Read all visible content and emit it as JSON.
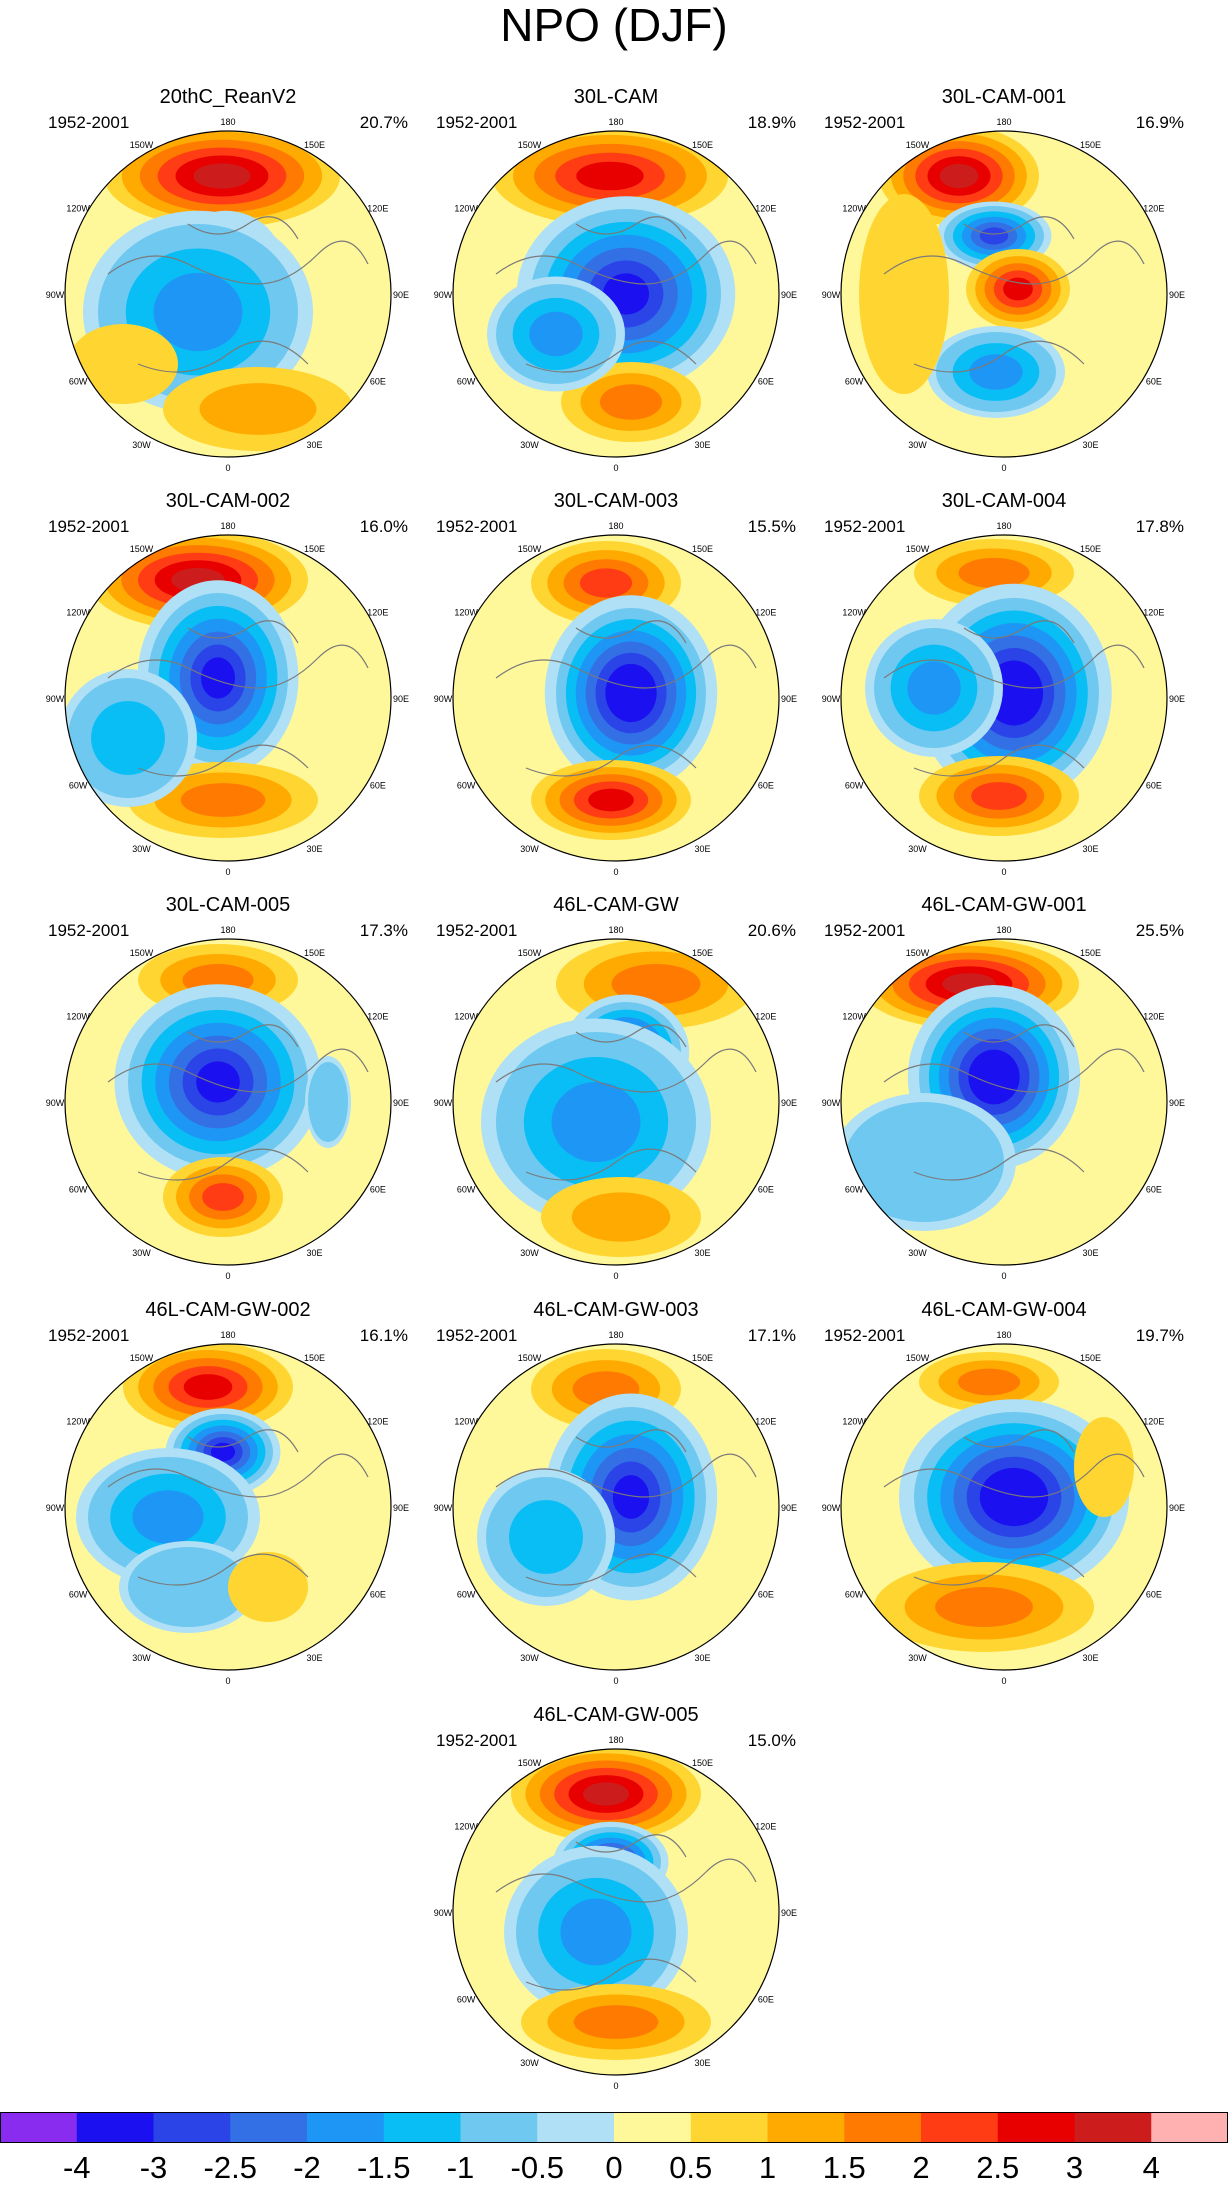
{
  "title": "NPO (DJF)",
  "longitude_labels": [
    "180",
    "150E",
    "120E",
    "90E",
    "60E",
    "30E",
    "0",
    "30W",
    "60W",
    "90W",
    "120W",
    "150W"
  ],
  "panels": [
    {
      "name": "20thC_ReanV2",
      "period": "1952-2001",
      "percent": "20.7%"
    },
    {
      "name": "30L-CAM",
      "period": "1952-2001",
      "percent": "18.9%"
    },
    {
      "name": "30L-CAM-001",
      "period": "1952-2001",
      "percent": "16.9%"
    },
    {
      "name": "30L-CAM-002",
      "period": "1952-2001",
      "percent": "16.0%"
    },
    {
      "name": "30L-CAM-003",
      "period": "1952-2001",
      "percent": "15.5%"
    },
    {
      "name": "30L-CAM-004",
      "period": "1952-2001",
      "percent": "17.8%"
    },
    {
      "name": "30L-CAM-005",
      "period": "1952-2001",
      "percent": "17.3%"
    },
    {
      "name": "46L-CAM-GW",
      "period": "1952-2001",
      "percent": "20.6%"
    },
    {
      "name": "46L-CAM-GW-001",
      "period": "1952-2001",
      "percent": "25.5%"
    },
    {
      "name": "46L-CAM-GW-002",
      "period": "1952-2001",
      "percent": "16.1%"
    },
    {
      "name": "46L-CAM-GW-003",
      "period": "1952-2001",
      "percent": "17.1%"
    },
    {
      "name": "46L-CAM-GW-004",
      "period": "1952-2001",
      "percent": "19.7%"
    },
    {
      "name": "46L-CAM-GW-005",
      "period": "1952-2001",
      "percent": "15.0%"
    }
  ],
  "colorbar": {
    "labels": [
      "-4",
      "-3",
      "-2.5",
      "-2",
      "-1.5",
      "-1",
      "-0.5",
      "0",
      "0.5",
      "1",
      "1.5",
      "2",
      "2.5",
      "3",
      "4"
    ],
    "colors": [
      "#8a2cf0",
      "#1a10f0",
      "#2b44e8",
      "#3370e6",
      "#1e96f5",
      "#08bef5",
      "#6ec8f0",
      "#b0e0f5",
      "#fff89a",
      "#ffd531",
      "#ffaa00",
      "#ff7a00",
      "#ff3c14",
      "#e80000",
      "#cc1c1c",
      "#ffb1b1"
    ]
  }
}
